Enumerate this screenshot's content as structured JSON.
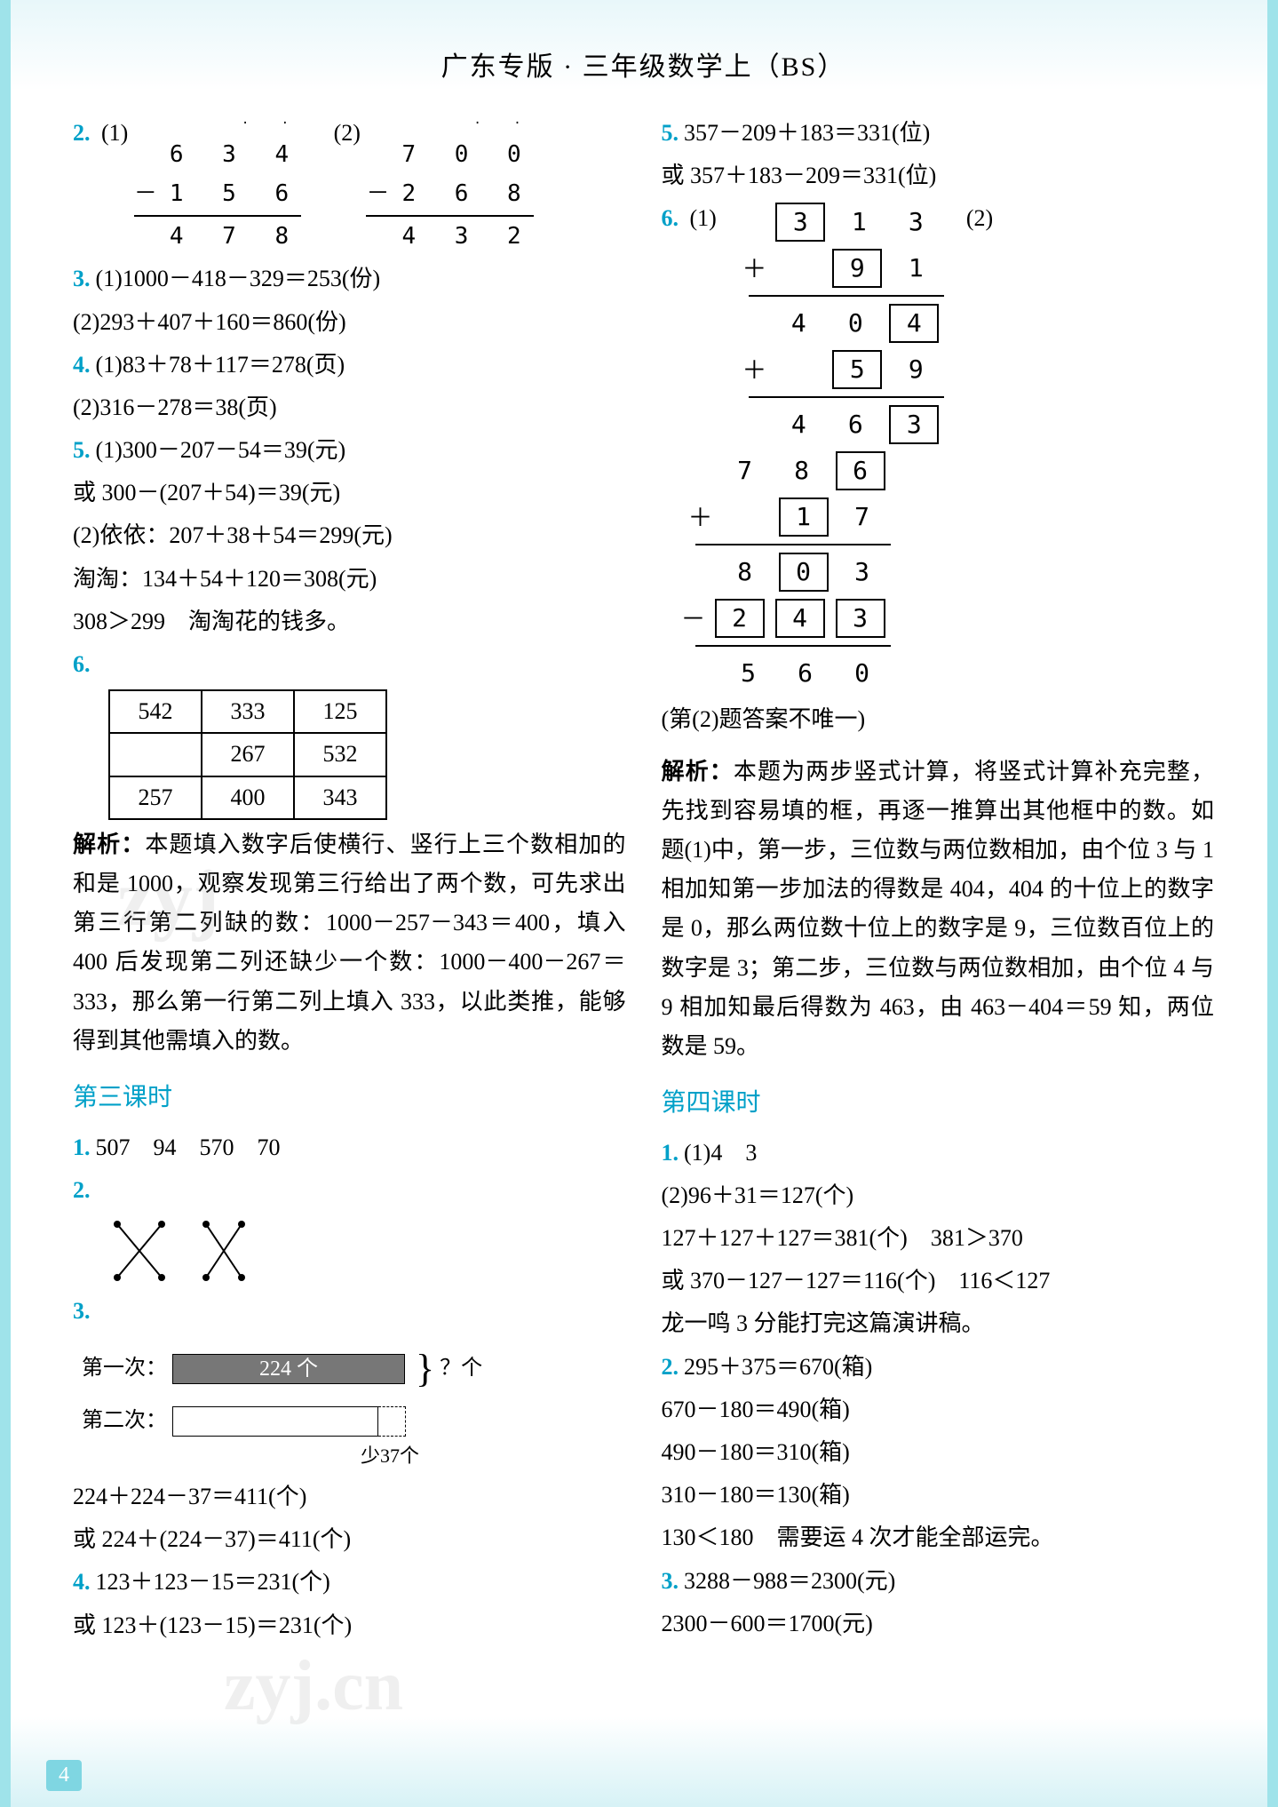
{
  "page_title": "广东专版 · 三年级数学上（BS）",
  "page_number": "4",
  "watermark1": "zyj",
  "watermark2": "zyj.cn",
  "left": {
    "q2": {
      "num": "2.",
      "sub1_label": "(1)",
      "sub1": {
        "dots": " · ·",
        "top": "6 3 4",
        "minus": "－1 5 6",
        "result": "4 7 8"
      },
      "sub2_label": "(2)",
      "sub2": {
        "dots": " · ·",
        "top": "7 0 0",
        "minus": "－2 6 8",
        "result": "4 3 2"
      }
    },
    "q3": {
      "num": "3.",
      "l1": "(1)1000－418－329＝253(份)",
      "l2": "(2)293＋407＋160＝860(份)"
    },
    "q4": {
      "num": "4.",
      "l1": "(1)83＋78＋117＝278(页)",
      "l2": "(2)316－278＝38(页)"
    },
    "q5": {
      "num": "5.",
      "l1": "(1)300－207－54＝39(元)",
      "l2": "或 300－(207＋54)＝39(元)",
      "l3": "(2)依依：207＋38＋54＝299(元)",
      "l4": "淘淘：134＋54＋120＝308(元)",
      "l5": "308＞299　淘淘花的钱多。"
    },
    "q6": {
      "num": "6.",
      "table": [
        [
          "542",
          "333",
          "125"
        ],
        [
          "",
          "267",
          "532"
        ],
        [
          "257",
          "400",
          "343"
        ]
      ]
    },
    "analysis_label": "解析：",
    "analysis": "本题填入数字后使横行、竖行上三个数相加的和是 1000，观察发现第三行给出了两个数，可先求出第三行第二列缺的数：1000－257－343＝400，填入 400 后发现第二列还缺少一个数：1000－400－267＝333，那么第一行第二列上填入 333，以此类推，能够得到其他需填入的数。",
    "lesson3_hd": "第三课时",
    "l3q1": {
      "num": "1.",
      "text": "507　94　570　70"
    },
    "l3q2": {
      "num": "2."
    },
    "l3q3": {
      "num": "3.",
      "first": "第一次：",
      "bar_label": "224 个",
      "q_label": "？个",
      "second": "第二次：",
      "less": "少37个",
      "l1": "224＋224－37＝411(个)",
      "l2": "或 224＋(224－37)＝411(个)"
    },
    "l3q4": {
      "num": "4.",
      "l1": "123＋123－15＝231(个)",
      "l2": "或 123＋(123－15)＝231(个)"
    }
  },
  "right": {
    "q5": {
      "num": "5.",
      "l1": "357－209＋183＝331(位)",
      "l2": "或 357＋183－209＝331(位)"
    },
    "q6": {
      "num": "6.",
      "sub1_label": "(1)",
      "c1": {
        "r1": [
          "3",
          "1",
          "3"
        ],
        "op1": "＋",
        "r2": [
          "",
          "9",
          "1"
        ],
        "r3": [
          "4",
          "0",
          "4"
        ],
        "op2": "＋",
        "r4": [
          "",
          "5",
          "9"
        ],
        "r5": [
          "4",
          "6",
          "3"
        ],
        "boxes_r1": [
          true,
          false,
          false
        ],
        "boxes_r2": [
          false,
          true,
          false
        ],
        "boxes_r3": [
          false,
          false,
          true
        ],
        "boxes_r4": [
          false,
          true,
          false
        ],
        "boxes_r5": [
          false,
          false,
          true
        ]
      },
      "sub2_label": "(2)",
      "c2": {
        "r1": [
          "7",
          "8",
          "6"
        ],
        "op1": "＋",
        "r2": [
          "",
          "1",
          "7"
        ],
        "r3": [
          "8",
          "0",
          "3"
        ],
        "op2": "－",
        "r4": [
          "2",
          "4",
          "3"
        ],
        "r5": [
          "5",
          "6",
          "0"
        ],
        "boxes_r1": [
          false,
          false,
          true
        ],
        "boxes_r2": [
          false,
          true,
          false
        ],
        "boxes_r3": [
          false,
          true,
          false
        ],
        "boxes_r4": [
          true,
          true,
          true
        ],
        "boxes_r5": [
          false,
          false,
          false
        ]
      },
      "note": "(第(2)题答案不唯一)"
    },
    "analysis_label": "解析：",
    "analysis": "本题为两步竖式计算，将竖式计算补充完整，先找到容易填的框，再逐一推算出其他框中的数。如题(1)中，第一步，三位数与两位数相加，由个位 3 与 1 相加知第一步加法的得数是 404，404 的十位上的数字是 0，那么两位数十位上的数字是 9，三位数百位上的数字是 3；第二步，三位数与两位数相加，由个位 4 与 9 相加知最后得数为 463，由 463－404＝59 知，两位数是 59。",
    "lesson4_hd": "第四课时",
    "l4q1": {
      "num": "1.",
      "l1": "(1)4　3",
      "l2": "(2)96＋31＝127(个)",
      "l3": "127＋127＋127＝381(个)　381＞370",
      "l4": "或 370－127－127＝116(个)　116＜127",
      "l5": "龙一鸣 3 分能打完这篇演讲稿。"
    },
    "l4q2": {
      "num": "2.",
      "l1": "295＋375＝670(箱)",
      "l2": "670－180＝490(箱)",
      "l3": "490－180＝310(箱)",
      "l4": "310－180＝130(箱)",
      "l5": "130＜180　需要运 4 次才能全部运完。"
    },
    "l4q3": {
      "num": "3.",
      "l1": "3288－988＝2300(元)",
      "l2": "2300－600＝1700(元)"
    }
  },
  "colors": {
    "accent": "#00a0c8",
    "border": "#9fe3ea"
  }
}
